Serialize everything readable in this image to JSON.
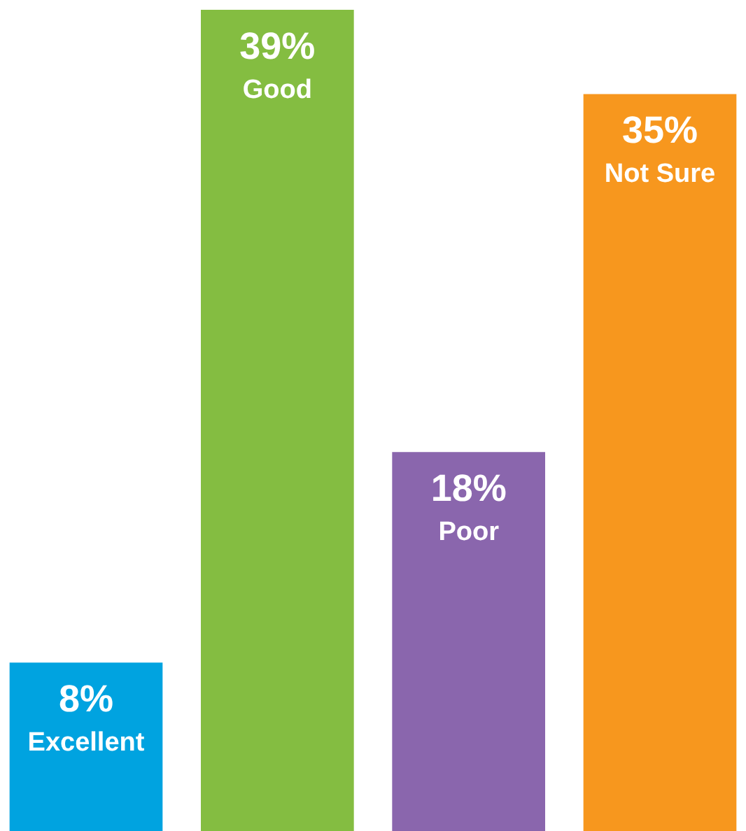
{
  "chart_data": {
    "type": "bar",
    "categories": [
      "Excellent",
      "Good",
      "Poor",
      "Not Sure"
    ],
    "values": [
      8,
      39,
      18,
      35
    ],
    "colors": [
      "#00a3e0",
      "#84bd41",
      "#8a66ad",
      "#f7971e"
    ],
    "value_labels": [
      "8%",
      "39%",
      "18%",
      "35%"
    ]
  }
}
